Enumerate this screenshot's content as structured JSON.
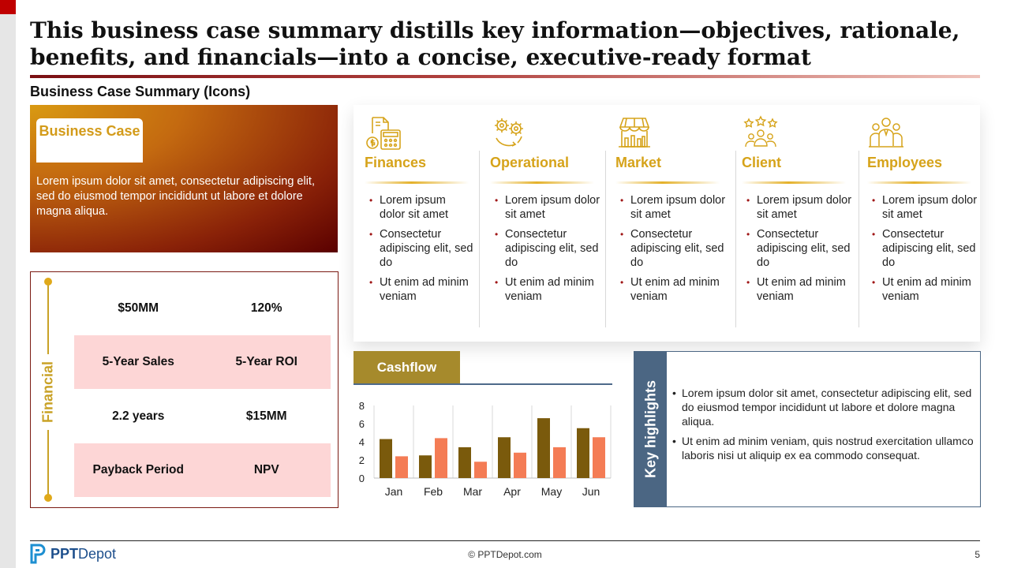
{
  "slide": {
    "title": "This business case summary distills key information—objectives, rationale, benefits, and financials—into a concise, executive-ready format",
    "subtitle": "Business Case Summary (Icons)"
  },
  "business_case": {
    "label": "Business Case",
    "text": "Lorem ipsum dolor sit amet, consectetur adipiscing elit, sed do eiusmod tempor incididunt ut labore et dolore magna aliqua."
  },
  "financial": {
    "label": "Financial",
    "rows": [
      {
        "left": "$50MM",
        "right": "120%"
      },
      {
        "left": "5-Year Sales",
        "right": "5-Year ROI"
      },
      {
        "left": "2.2 years",
        "right": "$15MM"
      },
      {
        "left": "Payback Period",
        "right": "NPV"
      }
    ]
  },
  "categories": [
    {
      "title": "Finances",
      "icon": "finance-calculator-icon",
      "items": [
        "Lorem ipsum dolor sit amet",
        "Consectetur adipiscing elit, sed do",
        "Ut enim ad minim veniam"
      ]
    },
    {
      "title": "Operational",
      "icon": "gears-cycle-icon",
      "items": [
        "Lorem ipsum dolor sit amet",
        "Consectetur adipiscing elit, sed do",
        "Ut enim ad minim veniam"
      ]
    },
    {
      "title": "Market",
      "icon": "market-stall-icon",
      "items": [
        "Lorem ipsum dolor sit amet",
        "Consectetur adipiscing elit, sed do",
        "Ut enim ad minim veniam"
      ]
    },
    {
      "title": "Client",
      "icon": "client-stars-icon",
      "items": [
        "Lorem ipsum dolor sit amet",
        "Consectetur adipiscing elit, sed do",
        "Ut enim ad minim veniam"
      ]
    },
    {
      "title": "Employees",
      "icon": "employees-group-icon",
      "items": [
        "Lorem ipsum dolor sit amet",
        "Consectetur adipiscing elit, sed do",
        "Ut enim ad minim veniam"
      ]
    }
  ],
  "cashflow": {
    "label": "Cashflow"
  },
  "chart_data": {
    "type": "bar",
    "categories": [
      "Jan",
      "Feb",
      "Mar",
      "Apr",
      "May",
      "Jun"
    ],
    "series": [
      {
        "values": [
          4.3,
          2.5,
          3.4,
          4.5,
          6.6,
          5.5
        ],
        "color": "#7a5a0c"
      },
      {
        "values": [
          2.4,
          4.4,
          1.8,
          2.8,
          3.4,
          4.5
        ],
        "color": "#f47c55"
      }
    ],
    "yticks": [
      "0",
      "2",
      "4",
      "6",
      "8"
    ],
    "ylim": [
      0,
      8
    ],
    "grid": "vertical"
  },
  "key_highlights": {
    "label": "Key highlights",
    "items": [
      "Lorem ipsum dolor sit amet, consectetur adipiscing elit, sed do eiusmod tempor incididunt ut labore et dolore magna aliqua.",
      "Ut enim ad minim veniam, quis nostrud exercitation ullamco laboris nisi ut aliquip ex ea commodo consequat."
    ]
  },
  "footer": {
    "logo_bold": "PPT",
    "logo_rest": "Depot",
    "copyright": "© PPTDepot.com",
    "page": "5"
  },
  "colors": {
    "accent_gold": "#d6a31a",
    "dark_red": "#7a1a12",
    "slate_blue": "#4b6683",
    "pink_row": "#fdd6d6"
  }
}
